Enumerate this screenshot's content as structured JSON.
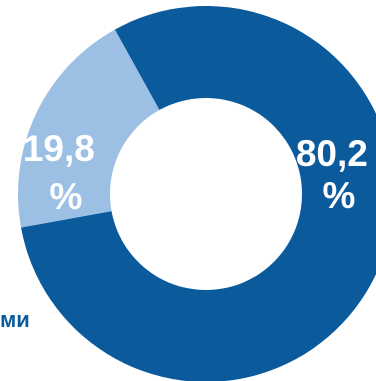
{
  "chart_data": {
    "type": "pie",
    "style": "donut",
    "title": "",
    "slices": [
      {
        "value": 80.2,
        "label": "80,2 %",
        "line1": "80,2",
        "line2": "%",
        "color": "#0b5a9c"
      },
      {
        "value": 19.8,
        "label": "19,8 %",
        "line1": "19,8",
        "line2": "%",
        "color": "#9cc0e4"
      }
    ],
    "category_fragment": "ми",
    "legend": "none"
  }
}
